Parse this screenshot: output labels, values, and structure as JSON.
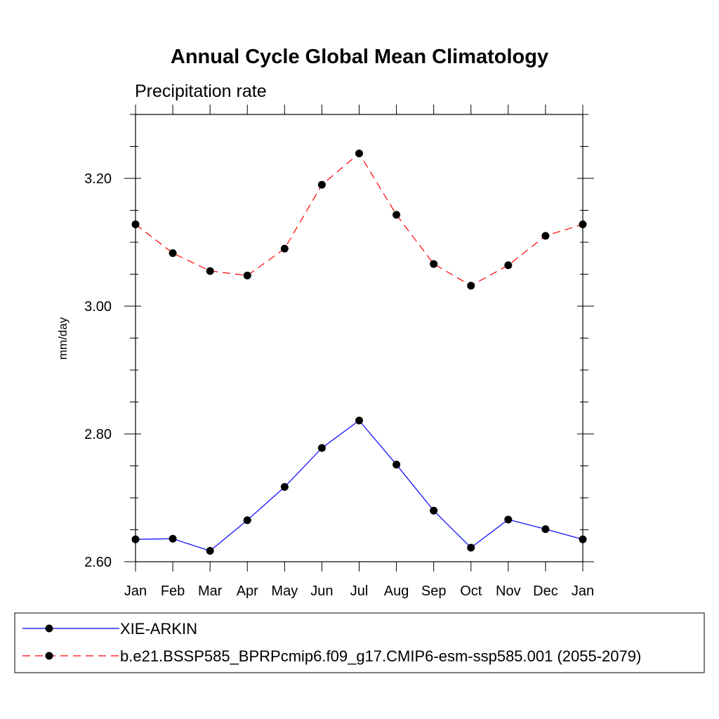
{
  "chart_data": {
    "type": "line",
    "title": "Annual Cycle Global Mean Climatology",
    "subtitle": "Precipitation rate",
    "xlabel": "",
    "ylabel": "mm/day",
    "categories": [
      "Jan",
      "Feb",
      "Mar",
      "Apr",
      "May",
      "Jun",
      "Jul",
      "Aug",
      "Sep",
      "Oct",
      "Nov",
      "Dec",
      "Jan"
    ],
    "ylim": [
      2.6,
      3.3
    ],
    "yticks": [
      2.6,
      2.8,
      3.0,
      3.2
    ],
    "ytick_labels": [
      "2.60",
      "2.80",
      "3.00",
      "3.20"
    ],
    "grid": false,
    "legend_position": "bottom",
    "series": [
      {
        "name": "XIE-ARKIN",
        "color": "#0000ff",
        "line_style": "solid",
        "marker": "filled-circle",
        "values": [
          2.635,
          2.636,
          2.617,
          2.665,
          2.717,
          2.778,
          2.821,
          2.752,
          2.68,
          2.622,
          2.666,
          2.651,
          2.635
        ]
      },
      {
        "name": "b.e21.BSSP585_BPRPcmip6.f09_g17.CMIP6-esm-ssp585.001 (2055-2079)",
        "color": "#ff0000",
        "line_style": "dashed",
        "marker": "filled-circle",
        "values": [
          3.128,
          3.083,
          3.055,
          3.048,
          3.09,
          3.19,
          3.239,
          3.143,
          3.066,
          3.032,
          3.064,
          3.11,
          3.128
        ]
      }
    ]
  }
}
